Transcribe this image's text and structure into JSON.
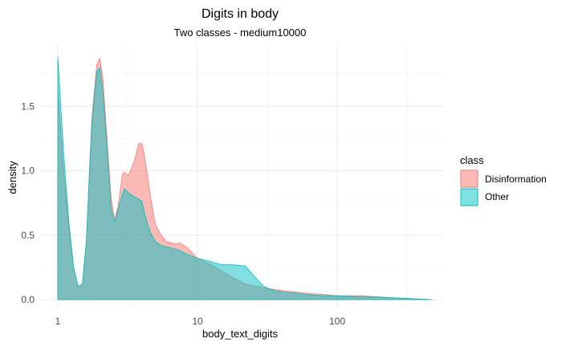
{
  "chart_data": {
    "type": "area",
    "title": "Digits in body",
    "subtitle": "Two classes - medium10000",
    "xlabel": "body_text_digits",
    "ylabel": "density",
    "x_scale": "log10",
    "xlim": [
      1,
      500
    ],
    "ylim": [
      0,
      1.9
    ],
    "x_ticks": [
      1,
      10,
      100
    ],
    "x_tick_labels": [
      "1",
      "10",
      "100"
    ],
    "y_ticks": [
      0,
      0.5,
      1,
      1.5
    ],
    "y_tick_labels": [
      "0.0",
      "0.5",
      "1.0",
      "1.5"
    ],
    "grid": true,
    "legend": {
      "title": "class",
      "position": "right"
    },
    "series": [
      {
        "name": "Disinformation",
        "color": "#F8766D",
        "x": [
          1,
          1.1,
          1.2,
          1.3,
          1.4,
          1.5,
          1.6,
          1.75,
          1.9,
          2,
          2.1,
          2.25,
          2.4,
          2.55,
          2.7,
          2.9,
          3,
          3.2,
          3.5,
          3.8,
          4,
          4.2,
          4.6,
          5,
          5.5,
          6,
          7,
          7.5,
          8.5,
          10,
          12,
          15,
          18,
          22,
          27,
          30,
          35,
          40,
          50,
          60,
          80,
          100,
          150,
          200,
          300,
          480
        ],
        "values": [
          1.63,
          1.0,
          0.55,
          0.25,
          0.1,
          0.12,
          0.45,
          1.4,
          1.82,
          1.87,
          1.72,
          1.25,
          0.8,
          0.62,
          0.72,
          0.97,
          0.99,
          0.96,
          1.06,
          1.21,
          1.21,
          1.1,
          0.8,
          0.58,
          0.5,
          0.45,
          0.43,
          0.44,
          0.4,
          0.32,
          0.28,
          0.22,
          0.17,
          0.12,
          0.1,
          0.09,
          0.08,
          0.07,
          0.06,
          0.05,
          0.04,
          0.03,
          0.03,
          0.02,
          0.01,
          0.0
        ]
      },
      {
        "name": "Other",
        "color": "#00BFC4",
        "x": [
          1,
          1.1,
          1.2,
          1.3,
          1.4,
          1.5,
          1.6,
          1.75,
          1.9,
          2,
          2.1,
          2.25,
          2.4,
          2.55,
          2.7,
          2.9,
          3,
          3.2,
          3.5,
          3.8,
          4,
          4.2,
          4.6,
          5,
          5.5,
          6,
          7,
          7.5,
          8.5,
          10,
          12,
          15,
          18,
          22,
          27,
          30,
          35,
          40,
          50,
          60,
          80,
          100,
          150,
          200,
          300,
          480
        ],
        "values": [
          1.88,
          1.15,
          0.6,
          0.25,
          0.1,
          0.12,
          0.45,
          1.35,
          1.77,
          1.8,
          1.62,
          1.18,
          0.72,
          0.6,
          0.7,
          0.82,
          0.86,
          0.83,
          0.8,
          0.78,
          0.76,
          0.66,
          0.52,
          0.45,
          0.42,
          0.41,
          0.39,
          0.38,
          0.35,
          0.32,
          0.3,
          0.27,
          0.27,
          0.26,
          0.15,
          0.1,
          0.07,
          0.06,
          0.05,
          0.04,
          0.03,
          0.03,
          0.02,
          0.02,
          0.01,
          0.0
        ]
      }
    ]
  }
}
